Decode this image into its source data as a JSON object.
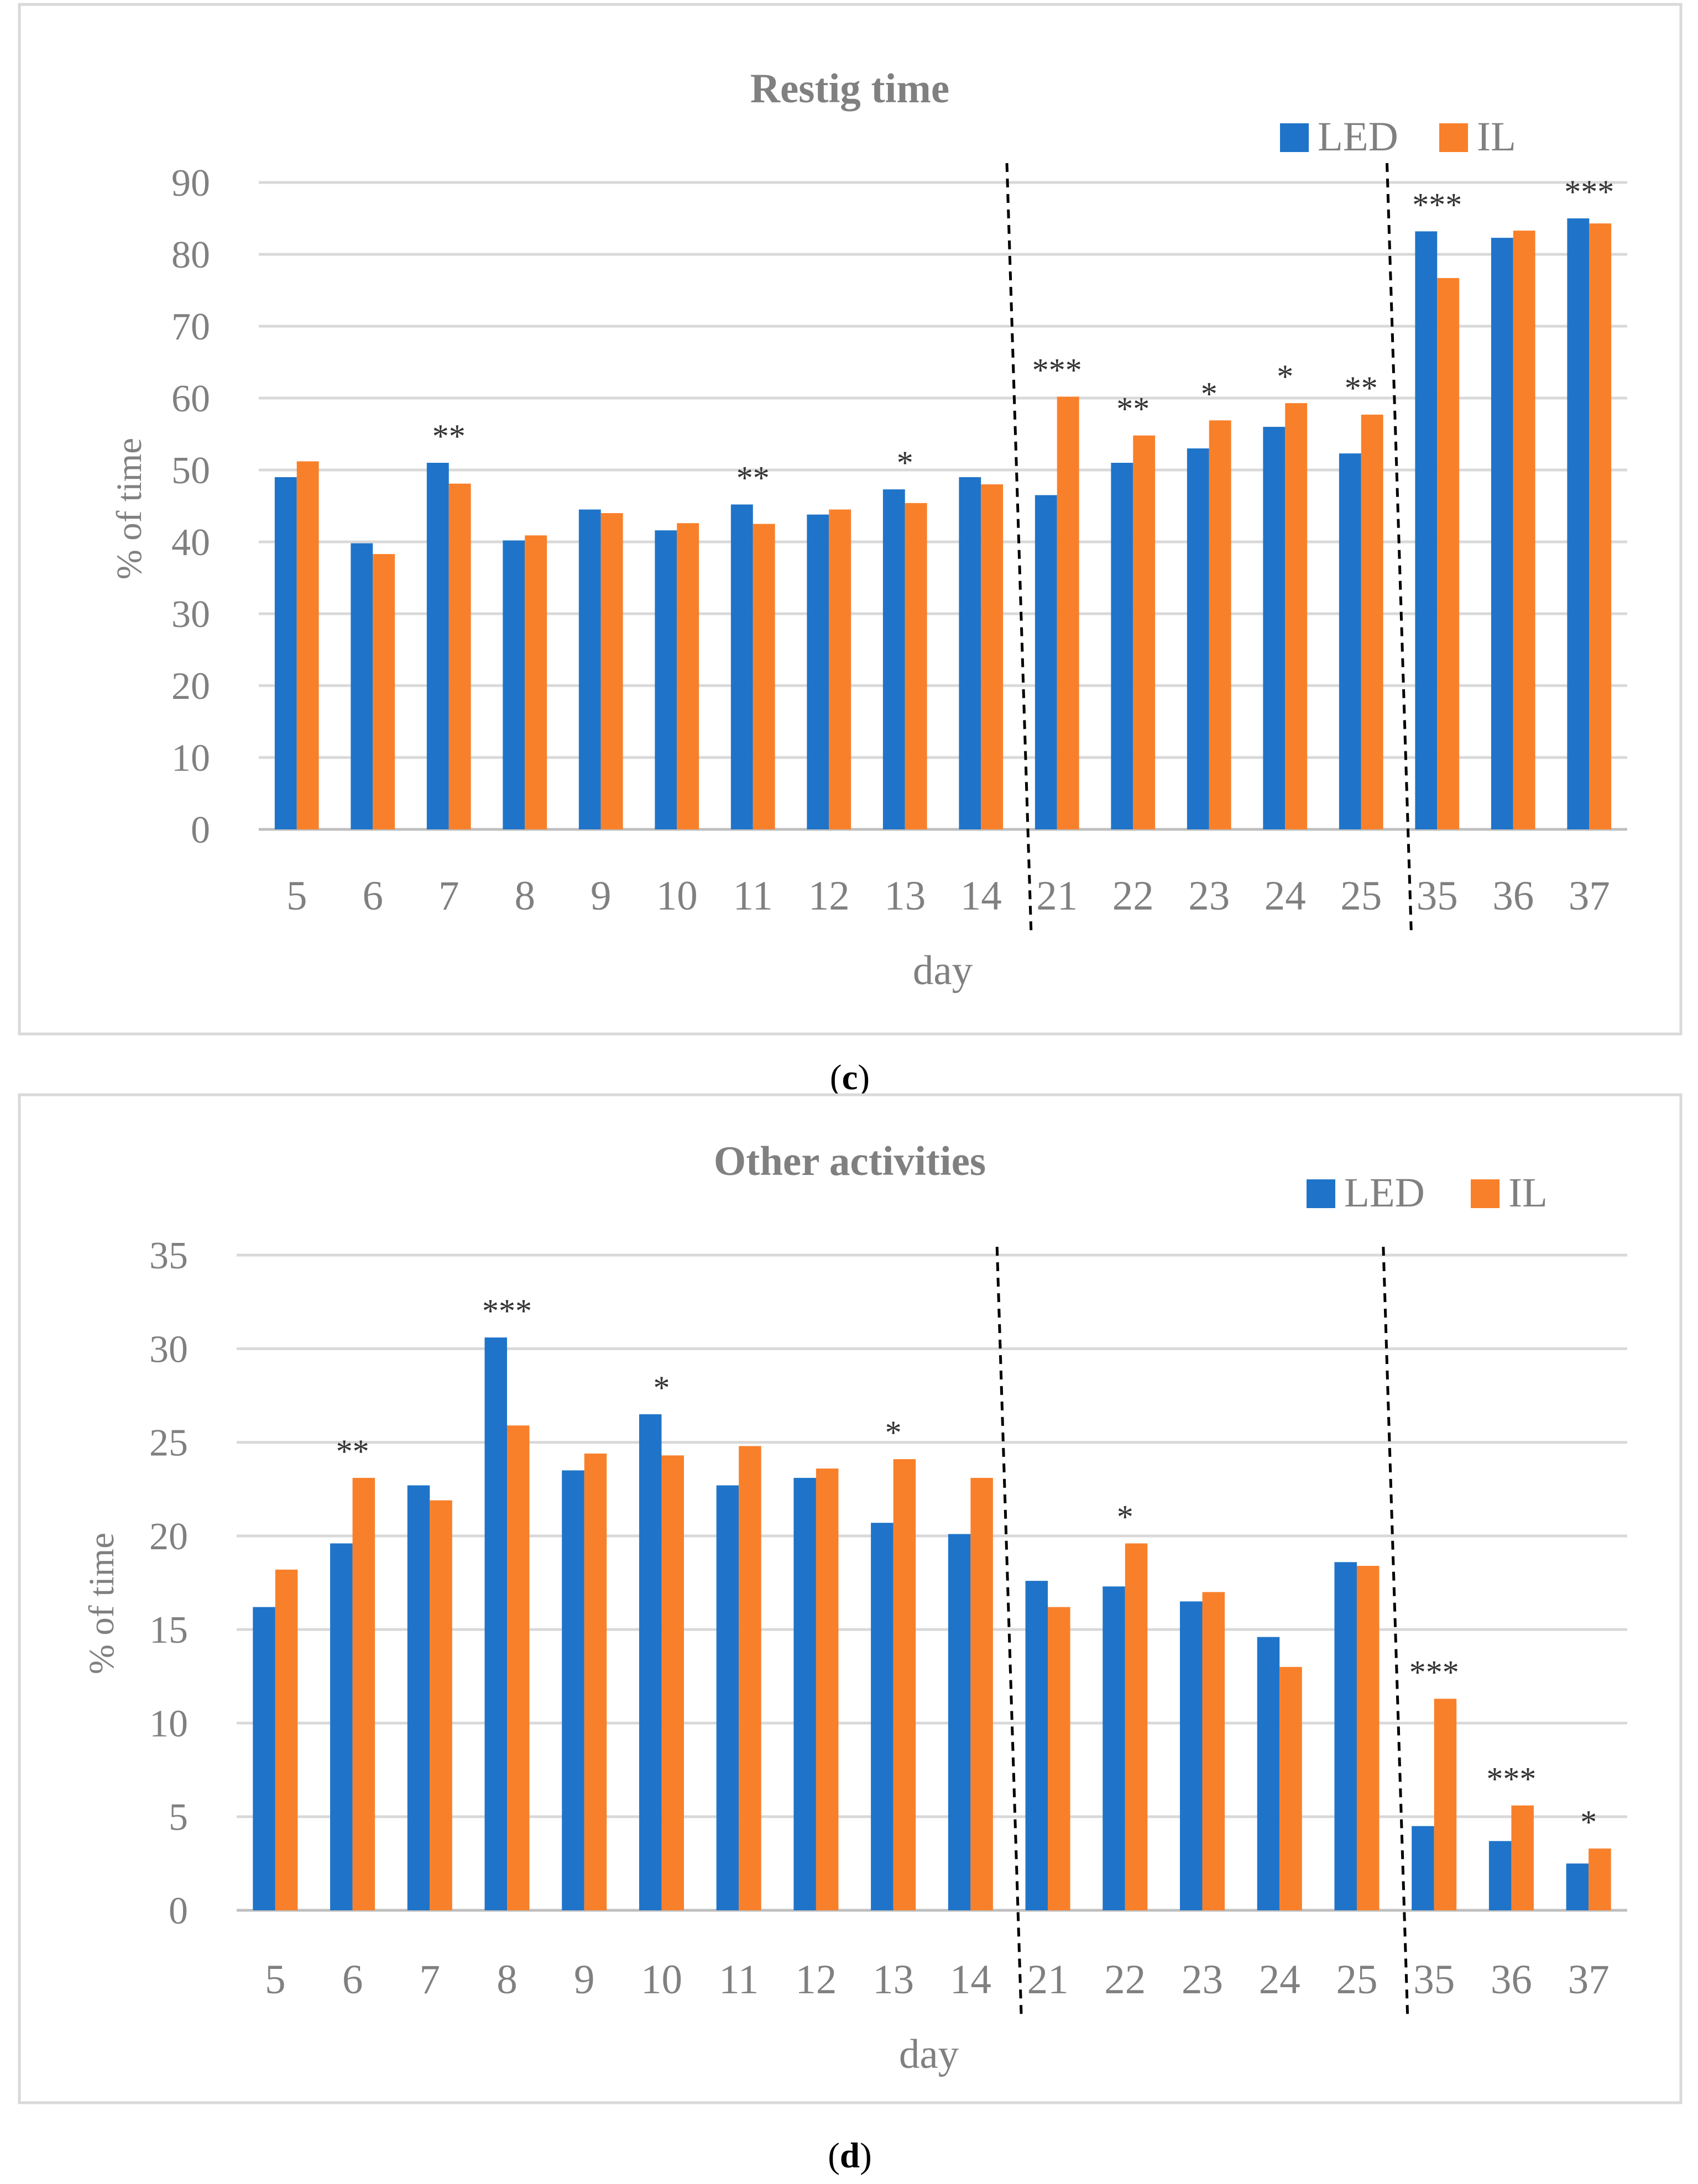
{
  "colors": {
    "led": "#1f74c9",
    "il": "#f9802a",
    "grid": "#d9d9d9",
    "text": "#808080",
    "frame": "#d9d9d9"
  },
  "chart_data": [
    {
      "type": "bar",
      "panel_label": "c",
      "title": "Restig time",
      "xlabel": "day",
      "ylabel": "% of time",
      "ylim": [
        0,
        90
      ],
      "yticks": [
        0,
        10,
        20,
        30,
        40,
        50,
        60,
        70,
        80,
        90
      ],
      "categories": [
        "5",
        "6",
        "7",
        "8",
        "9",
        "10",
        "11",
        "12",
        "13",
        "14",
        "21",
        "22",
        "23",
        "24",
        "25",
        "35",
        "36",
        "37"
      ],
      "series": [
        {
          "name": "LED",
          "values": [
            49,
            39.8,
            51,
            40.2,
            44.5,
            41.6,
            45.2,
            43.8,
            47.3,
            49,
            46.5,
            51,
            53,
            56,
            52.3,
            83.2,
            82.3,
            85
          ]
        },
        {
          "name": "IL",
          "values": [
            51.2,
            38.3,
            48.1,
            40.9,
            44,
            42.6,
            42.5,
            44.5,
            45.4,
            48,
            60.2,
            54.8,
            56.9,
            59.3,
            57.7,
            76.7,
            83.3,
            84.3
          ]
        }
      ],
      "significance": [
        "",
        "",
        "**",
        "",
        "",
        "",
        "**",
        "",
        "*",
        "",
        "***",
        "**",
        "*",
        "*",
        "**",
        "***",
        "",
        "***"
      ],
      "separators_after": [
        "14",
        "25"
      ],
      "legend": "top-right",
      "grid": true
    },
    {
      "type": "bar",
      "panel_label": "d",
      "title": "Other activities",
      "xlabel": "day",
      "ylabel": "% of time",
      "ylim": [
        0,
        35
      ],
      "yticks": [
        0,
        5,
        10,
        15,
        20,
        25,
        30,
        35
      ],
      "categories": [
        "5",
        "6",
        "7",
        "8",
        "9",
        "10",
        "11",
        "12",
        "13",
        "14",
        "21",
        "22",
        "23",
        "24",
        "25",
        "35",
        "36",
        "37"
      ],
      "series": [
        {
          "name": "LED",
          "values": [
            16.2,
            19.6,
            22.7,
            30.6,
            23.5,
            26.5,
            22.7,
            23.1,
            20.7,
            20.1,
            17.6,
            17.3,
            16.5,
            14.6,
            18.6,
            4.5,
            3.7,
            2.5
          ]
        },
        {
          "name": "IL",
          "values": [
            18.2,
            23.1,
            21.9,
            25.9,
            24.4,
            24.3,
            24.8,
            23.6,
            24.1,
            23.1,
            16.2,
            19.6,
            17,
            13,
            18.4,
            11.3,
            5.6,
            3.3
          ]
        }
      ],
      "significance": [
        "",
        "**",
        "",
        "***",
        "",
        "*",
        "",
        "",
        "*",
        "",
        "",
        "*",
        "",
        "",
        "",
        "***",
        "***",
        "*"
      ],
      "separators_after": [
        "14",
        "25"
      ],
      "legend": "top-right",
      "grid": true
    }
  ]
}
